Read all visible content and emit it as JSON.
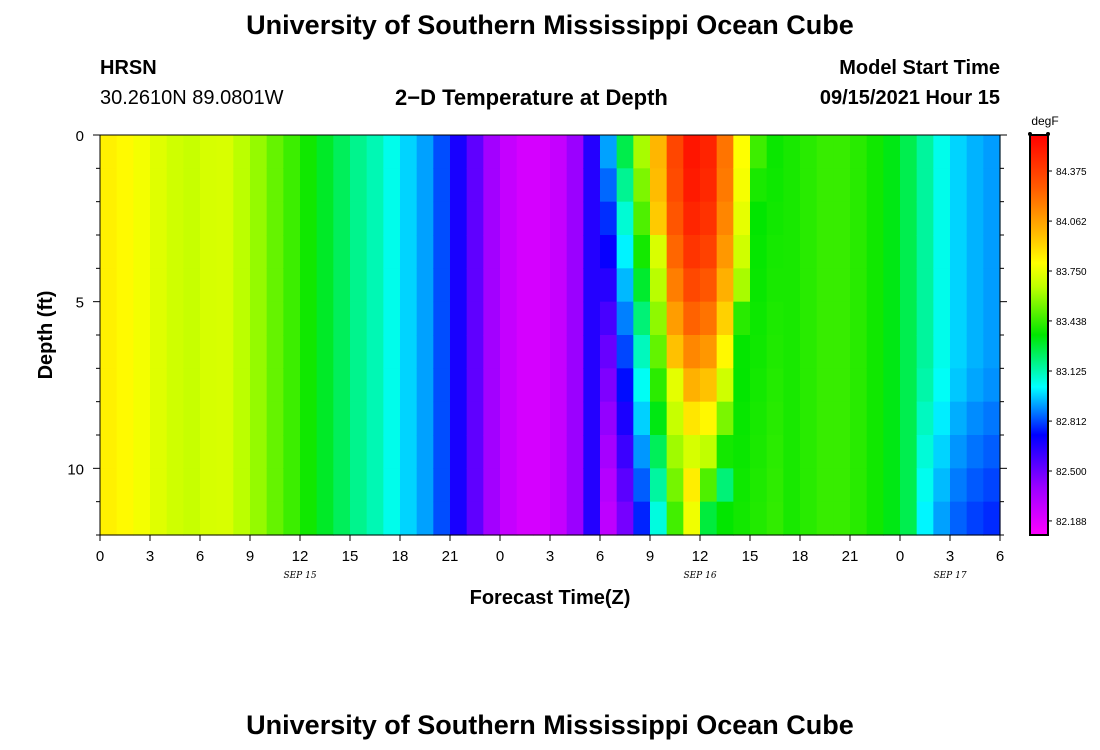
{
  "page": {
    "title_top": "University of Southern Mississippi Ocean Cube",
    "title_bottom": "University of Southern Mississippi Ocean Cube",
    "station_name": "HRSN",
    "station_coords": "30.2610N  89.0801W",
    "plot_title": "2−D Temperature at Depth",
    "model_start_label": "Model Start Time",
    "model_start_value": "09/15/2021 Hour 15"
  },
  "chart_data": {
    "type": "heatmap",
    "title": "2−D Temperature at Depth",
    "xlabel": "Forecast Time(Z)",
    "ylabel": "Depth (ft)",
    "x_tick_labels": [
      "0",
      "3",
      "6",
      "9",
      "12",
      "15",
      "18",
      "21",
      "0",
      "3",
      "6",
      "9",
      "12",
      "15",
      "18",
      "21",
      "0",
      "3",
      "6"
    ],
    "x_hours_from_start": [
      0,
      3,
      6,
      9,
      12,
      15,
      18,
      21,
      24,
      27,
      30,
      33,
      36,
      39,
      42,
      45,
      48,
      51,
      54
    ],
    "date_labels": [
      {
        "text": "SEP 15",
        "hour": 12
      },
      {
        "text": "SEP 16",
        "hour": 36
      },
      {
        "text": "SEP 17",
        "hour": 51
      }
    ],
    "xlim": [
      0,
      54
    ],
    "y_ticks": [
      0,
      5,
      10
    ],
    "ylim": [
      12,
      0
    ],
    "depths_ft": [
      0,
      1,
      2,
      3,
      4,
      5,
      6,
      7,
      8,
      9,
      10,
      11,
      12
    ],
    "colorbar": {
      "unit": "degF",
      "min": 82.1,
      "max": 84.6,
      "tick_values": [
        82.188,
        82.5,
        82.812,
        83.125,
        83.438,
        83.75,
        84.062,
        84.375
      ],
      "tick_labels": [
        "82.188",
        "82.500",
        "82.812",
        "83.125",
        "83.438",
        "83.750",
        "84.062",
        "84.375"
      ]
    },
    "surface_temperature_series": {
      "hours": [
        0,
        2,
        4,
        6,
        7,
        8,
        9,
        10,
        11,
        12,
        13,
        14,
        15,
        16,
        17,
        18,
        19,
        20,
        21,
        22,
        24,
        26,
        28,
        29,
        30,
        31,
        32,
        33,
        34,
        35,
        36,
        37,
        38,
        39,
        40,
        42,
        44,
        46,
        48,
        50,
        51,
        52,
        53,
        54
      ],
      "values": [
        83.85,
        83.8,
        83.7,
        83.66,
        83.75,
        83.67,
        83.62,
        83.55,
        83.47,
        83.42,
        83.33,
        83.27,
        83.2,
        83.14,
        83.1,
        83.0,
        82.95,
        82.88,
        82.75,
        82.6,
        82.3,
        82.2,
        82.3,
        82.5,
        82.8,
        83.1,
        83.5,
        83.8,
        84.2,
        84.5,
        84.55,
        84.4,
        84.0,
        83.6,
        83.35,
        83.4,
        83.45,
        83.4,
        83.3,
        83.1,
        83.0,
        82.95,
        82.92,
        82.9
      ]
    },
    "depth_anomaly_note": {
      "warm_core_hours": [
        34,
        38
      ],
      "warm_core_bottom_depth_ft": 11
    }
  }
}
